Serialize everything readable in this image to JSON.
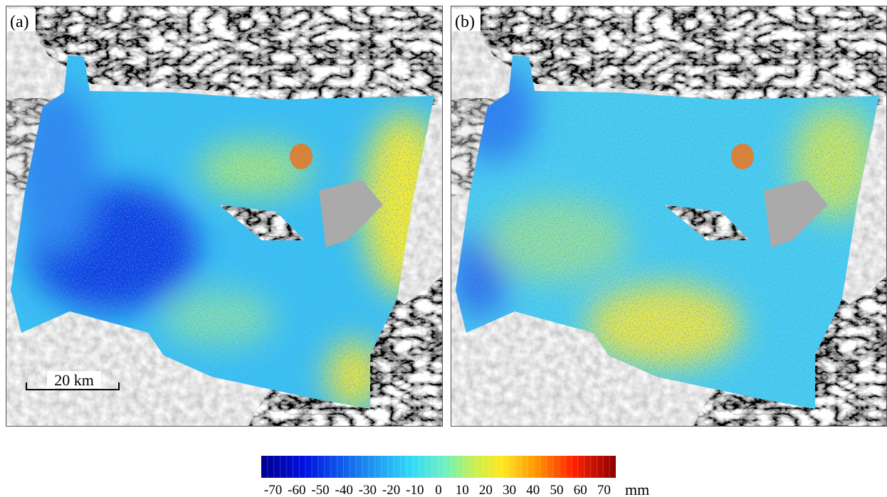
{
  "panels": [
    {
      "label": "(a)",
      "scale_bar": "20 km"
    },
    {
      "label": "(b)"
    }
  ],
  "colorbar": {
    "lim": [
      -75,
      75
    ],
    "ticks": [
      -70,
      -60,
      -50,
      -40,
      -30,
      -20,
      -10,
      0,
      10,
      20,
      30,
      40,
      50,
      60,
      70
    ],
    "unit": "mm"
  }
}
